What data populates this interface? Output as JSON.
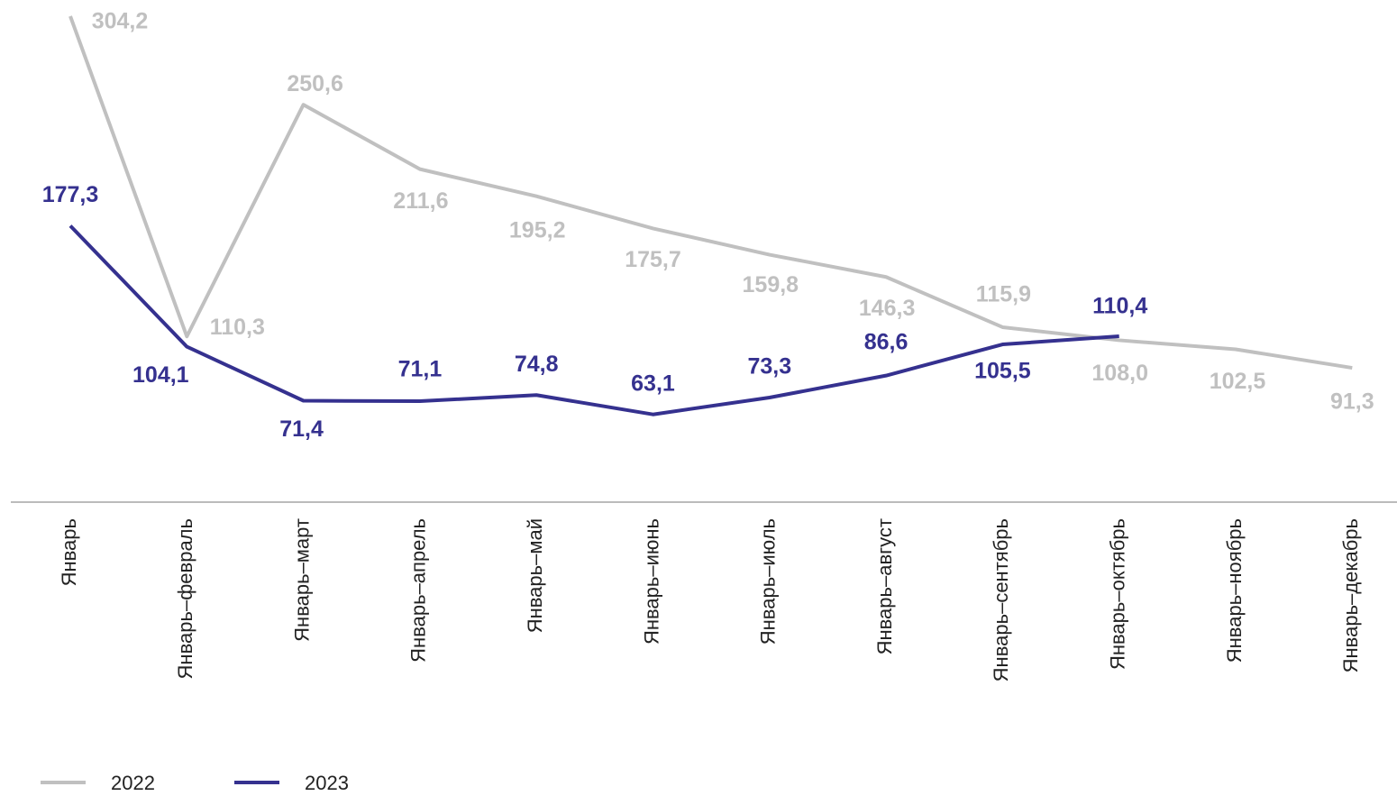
{
  "chart_data": {
    "type": "line",
    "categories": [
      "Январь",
      "Январь–февраль",
      "Январь–март",
      "Январь–апрель",
      "Январь–май",
      "Январь–июнь",
      "Январь–июль",
      "Январь–август",
      "Январь–сентябрь",
      "Январь–октябрь",
      "Январь–ноябрь",
      "Январь–декабрь"
    ],
    "series": [
      {
        "name": "2022",
        "color": "#c0c0c0",
        "values": [
          304.2,
          110.3,
          250.6,
          211.6,
          195.2,
          175.7,
          159.8,
          146.3,
          115.9,
          108.0,
          102.5,
          91.3
        ],
        "value_labels": [
          "304,2",
          "110,3",
          "250,6",
          "211,6",
          "195,2",
          "175,7",
          "159,8",
          "146,3",
          "115,9",
          "108,0",
          "102,5",
          "91,3"
        ]
      },
      {
        "name": "2023",
        "color": "#35318f",
        "values": [
          177.3,
          104.1,
          71.4,
          71.1,
          74.8,
          63.1,
          73.3,
          86.6,
          105.5,
          110.4,
          null,
          null
        ],
        "value_labels": [
          "177,3",
          "104,1",
          "71,4",
          "71,1",
          "74,8",
          "63,1",
          "73,3",
          "86,6",
          "105,5",
          "110,4",
          null,
          null
        ]
      }
    ],
    "ylim": [
      10,
      314
    ]
  }
}
